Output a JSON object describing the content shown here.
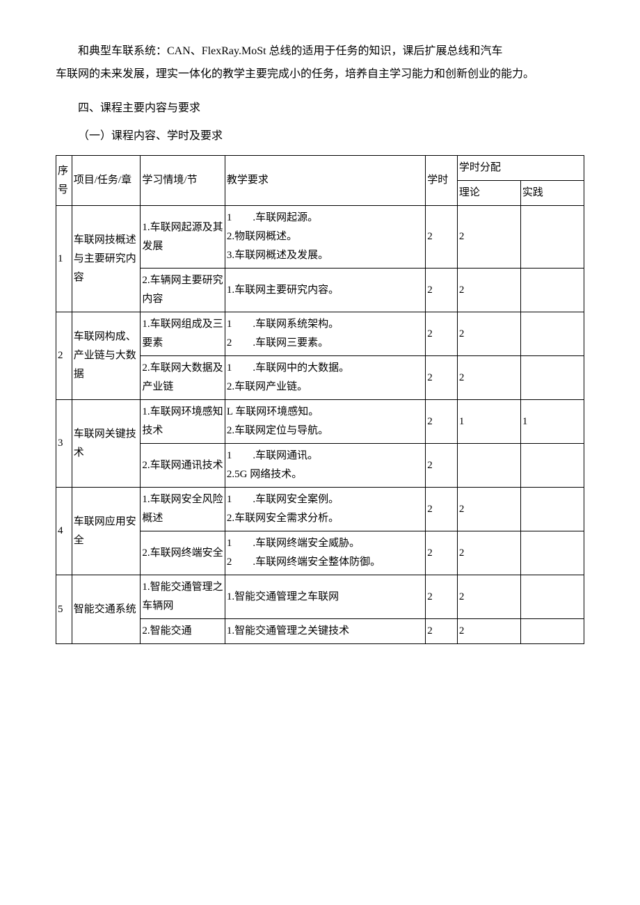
{
  "intro": {
    "p1": "和典型车联系统：CAN、FlexRay.MoSt 总线的适用于任务的知识，课后扩展总线和汽车",
    "p2": "车联网的未来发展，理实一体化的教学主要完成小的任务，培养自主学习能力和创新创业的能力。"
  },
  "heading4": "四、课程主要内容与要求",
  "subheading1": "（一）课程内容、学时及要求",
  "table": {
    "header": {
      "seq": "序号",
      "project": "项目/任务/章",
      "context": "学习情境/节",
      "req": "教学要求",
      "hours": "学时",
      "distribution": "学时分配",
      "theory": "理论",
      "practice": "实践"
    },
    "rows": [
      {
        "seq": "1",
        "project": "车联网技概述与主要研究内容",
        "subs": [
          {
            "context": "1.车联网起源及其发展",
            "req_lines": [
              "1　　.车联网起源。",
              "2.物联网概述。",
              "3.车联网概述及发展。"
            ],
            "hours": "2",
            "theory": "2",
            "practice": ""
          },
          {
            "context": "2.车辆网主要研究内容",
            "req_lines": [
              "1.车联网主要研究内容。"
            ],
            "hours": "2",
            "theory": "2",
            "practice": ""
          }
        ]
      },
      {
        "seq": "2",
        "project": "车联网构成、产业链与大数据",
        "subs": [
          {
            "context": "1.车联网组成及三要素",
            "req_lines": [
              "1　　.车联网系统架构。",
              "2　　.车联网三要素。"
            ],
            "hours": "2",
            "theory": "2",
            "practice": ""
          },
          {
            "context": "2.车联网大数据及产业链",
            "req_lines": [
              "1　　.车联网中的大数据。",
              "2.车联网产业链。"
            ],
            "hours": "2",
            "theory": "2",
            "practice": ""
          }
        ]
      },
      {
        "seq": "3",
        "project": "车联网关键技术",
        "subs": [
          {
            "context": "1.车联网环境感知技术",
            "req_lines": [
              "L 车联网环境感知。",
              "2.车联网定位与导航。"
            ],
            "hours": "2",
            "theory": "1",
            "practice": "1"
          },
          {
            "context": "2.车联网通讯技术",
            "req_lines": [
              "1　　.车联网通讯。",
              "2.5G 网络技术。"
            ],
            "hours": "2",
            "theory": "",
            "practice": ""
          }
        ]
      },
      {
        "seq": "4",
        "project": "车联网应用安全",
        "subs": [
          {
            "context": "1.车联网安全风险概述",
            "req_lines": [
              "1　　.车联网安全案例。",
              "2.车联网安全需求分析。"
            ],
            "hours": "2",
            "theory": "2",
            "practice": ""
          },
          {
            "context": "2.车联网终端安全",
            "req_lines": [
              "1　　.车联网终端安全威胁。",
              "2　　.车联网终端安全整体防御。"
            ],
            "hours": "2",
            "theory": "2",
            "practice": ""
          }
        ]
      },
      {
        "seq": "5",
        "project": "智能交通系统",
        "subs": [
          {
            "context": "1.智能交通管理之车辆网",
            "req_lines": [
              "1.智能交通管理之车联网"
            ],
            "hours": "2",
            "theory": "2",
            "practice": ""
          },
          {
            "context": "2.智能交通",
            "req_lines": [
              "1.智能交通管理之关键技术"
            ],
            "hours": "2",
            "theory": "2",
            "practice": ""
          }
        ]
      }
    ]
  }
}
